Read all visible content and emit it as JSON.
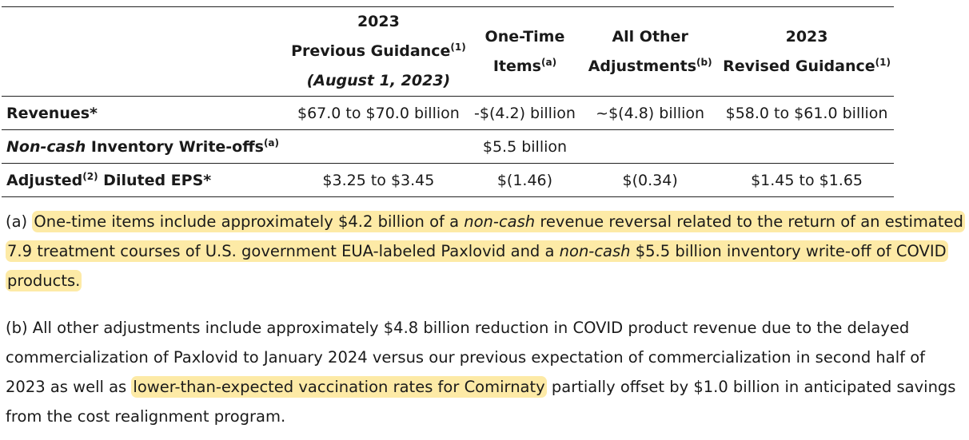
{
  "table": {
    "headers": {
      "prev": {
        "line1": "2023",
        "line2": "Previous Guidance",
        "sup": "(1)",
        "line3": "(August 1, 2023)"
      },
      "onetime": {
        "line1": "One-Time",
        "line2": "Items",
        "sup": "(a)"
      },
      "other": {
        "line1": "All Other",
        "line2": "Adjustments",
        "sup": "(b)"
      },
      "revised": {
        "line1": "2023",
        "line2": "Revised Guidance",
        "sup": "(1)"
      }
    },
    "rows": [
      {
        "label": "Revenues*",
        "prev": "$67.0 to $70.0 billion",
        "onetime": "-$(4.2) billion",
        "other": "~$(4.8) billion",
        "revised": "$58.0 to $61.0 billion"
      },
      {
        "label_italic": "Non-cash",
        "label_rest": " Inventory Write-offs",
        "label_sup": "(a)",
        "prev": "",
        "onetime": "$5.5 billion",
        "other": "",
        "revised": ""
      },
      {
        "label_a": "Adjusted",
        "label_sup": "(2)",
        "label_b": " Diluted EPS*",
        "prev": "$3.25 to $3.45",
        "onetime": "$(1.46)",
        "other": "$(0.34)",
        "revised": "$1.45 to $1.65"
      }
    ]
  },
  "notes": {
    "a": {
      "prefix": "(a) ",
      "p1": "One-time items include approximately $4.2 billion of a ",
      "i1": "non-cash",
      "p2": " revenue reversal related to the return of an estimated 7.9 treatment courses of U.S. government EUA-labeled Paxlovid and a ",
      "i2": "non-cash",
      "p3": " $5.5 billion inventory write-off of COVID products."
    },
    "b": {
      "p1": "(b) All other adjustments include approximately $4.8 billion reduction in COVID product revenue due to the delayed commercialization of Paxlovid to January 2024 versus our previous expectation of commercialization in second half of 2023 as well as ",
      "highlight": "lower-than-expected vaccination rates for Comirnaty",
      "p2": " partially offset by $1.0 billion in anticipated savings from the cost realignment program."
    }
  },
  "colors": {
    "highlight": "#fdeaa6",
    "rule": "#222222"
  }
}
